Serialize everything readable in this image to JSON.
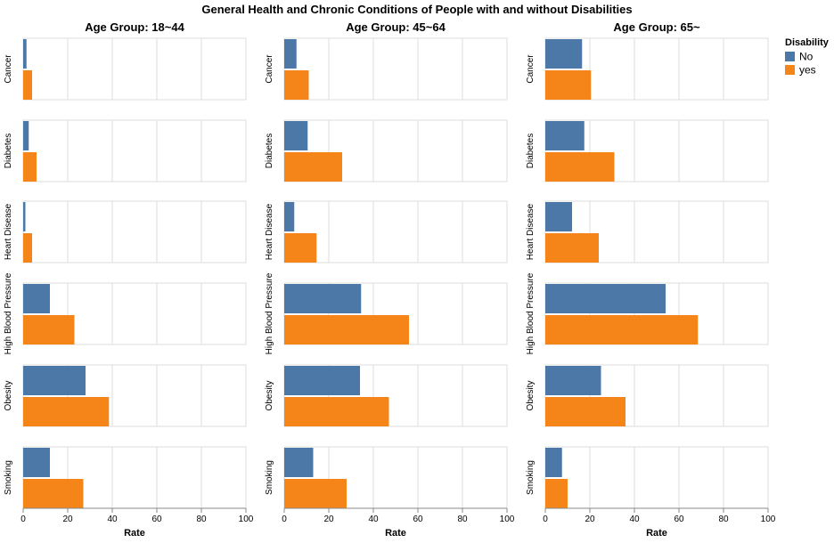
{
  "chart_data": {
    "type": "bar",
    "title": "General Health and Chronic Conditions of People with and without Disabilities",
    "orientation": "horizontal",
    "facet_columns_prefix": "Age Group: ",
    "columns": [
      "18~44",
      "45~64",
      "65~"
    ],
    "rows": [
      "Cancer",
      "Diabetes",
      "Heart Disease",
      "High Blood Pressure",
      "Obesity",
      "Smoking"
    ],
    "xlabel": "Rate",
    "xlim": [
      0,
      100
    ],
    "xticks": [
      0,
      20,
      40,
      60,
      80,
      100
    ],
    "grid": true,
    "legend": {
      "title": "Disability",
      "position": "top-right",
      "entries": [
        {
          "label": "No",
          "color": "#4c78a8"
        },
        {
          "label": "yes",
          "color": "#f58518"
        }
      ]
    },
    "series": [
      {
        "name": "No",
        "color": "#4c78a8",
        "values": [
          [
            1.5,
            5.5,
            16.5
          ],
          [
            2.5,
            10.5,
            17.5
          ],
          [
            1,
            4.5,
            12
          ],
          [
            12,
            34.5,
            54
          ],
          [
            28,
            34,
            25
          ],
          [
            12,
            13,
            7.5
          ]
        ]
      },
      {
        "name": "yes",
        "color": "#f58518",
        "values": [
          [
            4,
            11,
            20.5
          ],
          [
            6,
            26,
            31
          ],
          [
            4,
            14.5,
            24
          ],
          [
            23,
            56,
            68.5
          ],
          [
            38.5,
            47,
            36
          ],
          [
            27,
            28,
            10
          ]
        ]
      }
    ]
  }
}
